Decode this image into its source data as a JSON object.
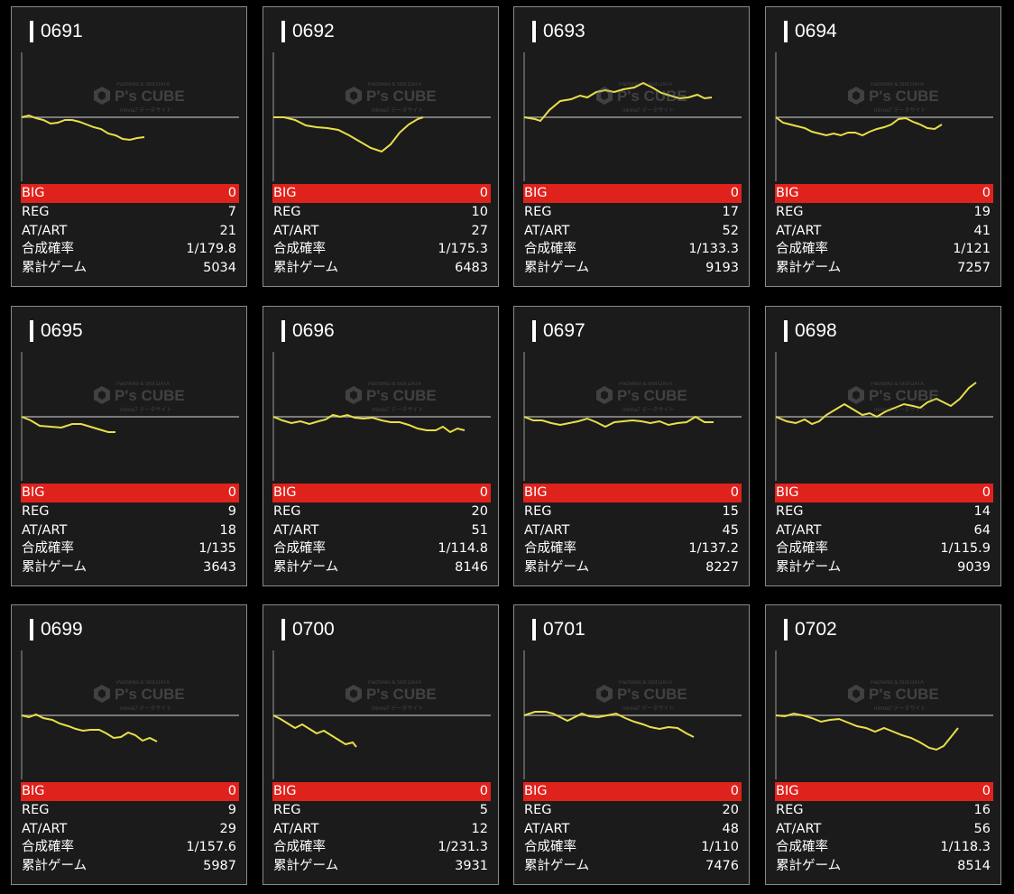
{
  "labels": {
    "big": "BIG",
    "reg": "REG",
    "at": "AT/ART",
    "rate": "合成確率",
    "games": "累計ゲーム"
  },
  "watermark": {
    "brand": "P's CUBE",
    "top": "Pachinko & Slot DATA",
    "sub": "minna7 データサイト"
  },
  "colors": {
    "background": "#000000",
    "card": "#1b1b1b",
    "big_row": "#e0221c",
    "line": "#e8e04a",
    "baseline": "#9a9a9a"
  },
  "machines": [
    {
      "id": "0691",
      "big": "0",
      "reg": "7",
      "at": "21",
      "rate": "1/179.8",
      "games": "5034",
      "trend": [
        [
          0,
          0
        ],
        [
          8,
          -2
        ],
        [
          16,
          1
        ],
        [
          24,
          3
        ],
        [
          32,
          7
        ],
        [
          40,
          6
        ],
        [
          48,
          3
        ],
        [
          56,
          3
        ],
        [
          64,
          5
        ],
        [
          72,
          8
        ],
        [
          80,
          11
        ],
        [
          88,
          13
        ],
        [
          96,
          18
        ],
        [
          104,
          20
        ],
        [
          112,
          24
        ],
        [
          120,
          25
        ],
        [
          128,
          23
        ],
        [
          136,
          22
        ]
      ]
    },
    {
      "id": "0692",
      "big": "0",
      "reg": "10",
      "at": "27",
      "rate": "1/175.3",
      "games": "6483",
      "trend": [
        [
          0,
          0
        ],
        [
          12,
          0
        ],
        [
          24,
          3
        ],
        [
          36,
          9
        ],
        [
          48,
          11
        ],
        [
          60,
          12
        ],
        [
          72,
          14
        ],
        [
          84,
          20
        ],
        [
          96,
          27
        ],
        [
          108,
          34
        ],
        [
          120,
          38
        ],
        [
          130,
          30
        ],
        [
          140,
          17
        ],
        [
          150,
          8
        ],
        [
          160,
          2
        ],
        [
          166,
          0
        ]
      ]
    },
    {
      "id": "0693",
      "big": "0",
      "reg": "17",
      "at": "52",
      "rate": "1/133.3",
      "games": "9193",
      "trend": [
        [
          0,
          0
        ],
        [
          12,
          2
        ],
        [
          18,
          4
        ],
        [
          28,
          -8
        ],
        [
          40,
          -18
        ],
        [
          52,
          -20
        ],
        [
          62,
          -24
        ],
        [
          70,
          -22
        ],
        [
          80,
          -28
        ],
        [
          90,
          -30
        ],
        [
          100,
          -28
        ],
        [
          110,
          -31
        ],
        [
          122,
          -33
        ],
        [
          132,
          -38
        ],
        [
          142,
          -33
        ],
        [
          152,
          -27
        ],
        [
          162,
          -24
        ],
        [
          172,
          -21
        ],
        [
          182,
          -22
        ],
        [
          192,
          -25
        ],
        [
          200,
          -21
        ],
        [
          208,
          -22
        ]
      ]
    },
    {
      "id": "0694",
      "big": "0",
      "reg": "19",
      "at": "41",
      "rate": "1/121",
      "games": "7257",
      "trend": [
        [
          0,
          0
        ],
        [
          8,
          6
        ],
        [
          16,
          8
        ],
        [
          24,
          10
        ],
        [
          32,
          12
        ],
        [
          40,
          16
        ],
        [
          48,
          18
        ],
        [
          56,
          20
        ],
        [
          64,
          18
        ],
        [
          72,
          20
        ],
        [
          80,
          17
        ],
        [
          88,
          17
        ],
        [
          96,
          20
        ],
        [
          104,
          16
        ],
        [
          112,
          13
        ],
        [
          120,
          11
        ],
        [
          128,
          8
        ],
        [
          136,
          2
        ],
        [
          144,
          1
        ],
        [
          152,
          5
        ],
        [
          160,
          8
        ],
        [
          168,
          12
        ],
        [
          176,
          13
        ],
        [
          184,
          8
        ]
      ]
    },
    {
      "id": "0695",
      "big": "0",
      "reg": "9",
      "at": "18",
      "rate": "1/135",
      "games": "3643",
      "trend": [
        [
          0,
          0
        ],
        [
          10,
          4
        ],
        [
          20,
          10
        ],
        [
          32,
          11
        ],
        [
          44,
          12
        ],
        [
          56,
          8
        ],
        [
          66,
          8
        ],
        [
          76,
          11
        ],
        [
          86,
          14
        ],
        [
          96,
          17
        ],
        [
          104,
          17
        ]
      ]
    },
    {
      "id": "0696",
      "big": "0",
      "reg": "20",
      "at": "51",
      "rate": "1/114.8",
      "games": "8146",
      "trend": [
        [
          0,
          0
        ],
        [
          10,
          4
        ],
        [
          20,
          7
        ],
        [
          30,
          5
        ],
        [
          40,
          8
        ],
        [
          50,
          5
        ],
        [
          58,
          3
        ],
        [
          66,
          -2
        ],
        [
          74,
          0
        ],
        [
          82,
          -2
        ],
        [
          90,
          1
        ],
        [
          100,
          2
        ],
        [
          110,
          1
        ],
        [
          120,
          4
        ],
        [
          130,
          6
        ],
        [
          140,
          6
        ],
        [
          150,
          9
        ],
        [
          160,
          13
        ],
        [
          170,
          15
        ],
        [
          180,
          15
        ],
        [
          188,
          11
        ],
        [
          196,
          17
        ],
        [
          204,
          13
        ],
        [
          212,
          15
        ]
      ]
    },
    {
      "id": "0697",
      "big": "0",
      "reg": "15",
      "at": "45",
      "rate": "1/137.2",
      "games": "8227",
      "trend": [
        [
          0,
          0
        ],
        [
          10,
          4
        ],
        [
          20,
          4
        ],
        [
          30,
          7
        ],
        [
          40,
          9
        ],
        [
          50,
          7
        ],
        [
          60,
          5
        ],
        [
          70,
          2
        ],
        [
          80,
          6
        ],
        [
          90,
          11
        ],
        [
          100,
          6
        ],
        [
          110,
          5
        ],
        [
          120,
          4
        ],
        [
          130,
          5
        ],
        [
          140,
          7
        ],
        [
          150,
          5
        ],
        [
          160,
          9
        ],
        [
          170,
          7
        ],
        [
          180,
          6
        ],
        [
          190,
          0
        ],
        [
          200,
          6
        ],
        [
          210,
          6
        ]
      ]
    },
    {
      "id": "0698",
      "big": "0",
      "reg": "14",
      "at": "64",
      "rate": "1/115.9",
      "games": "9039",
      "trend": [
        [
          0,
          0
        ],
        [
          12,
          5
        ],
        [
          22,
          7
        ],
        [
          32,
          3
        ],
        [
          40,
          8
        ],
        [
          48,
          5
        ],
        [
          56,
          -2
        ],
        [
          66,
          -8
        ],
        [
          76,
          -14
        ],
        [
          86,
          -8
        ],
        [
          96,
          -2
        ],
        [
          104,
          -4
        ],
        [
          112,
          0
        ],
        [
          122,
          -6
        ],
        [
          132,
          -10
        ],
        [
          142,
          -14
        ],
        [
          152,
          -12
        ],
        [
          160,
          -10
        ],
        [
          168,
          -16
        ],
        [
          178,
          -20
        ],
        [
          186,
          -16
        ],
        [
          194,
          -12
        ],
        [
          204,
          -20
        ],
        [
          214,
          -32
        ],
        [
          222,
          -38
        ]
      ]
    },
    {
      "id": "0699",
      "big": "0",
      "reg": "9",
      "at": "29",
      "rate": "1/157.6",
      "games": "5987",
      "trend": [
        [
          0,
          0
        ],
        [
          8,
          2
        ],
        [
          16,
          -1
        ],
        [
          24,
          3
        ],
        [
          34,
          5
        ],
        [
          42,
          9
        ],
        [
          52,
          12
        ],
        [
          60,
          15
        ],
        [
          68,
          17
        ],
        [
          76,
          16
        ],
        [
          86,
          16
        ],
        [
          94,
          20
        ],
        [
          102,
          25
        ],
        [
          110,
          24
        ],
        [
          118,
          19
        ],
        [
          126,
          22
        ],
        [
          134,
          28
        ],
        [
          142,
          25
        ],
        [
          150,
          29
        ]
      ]
    },
    {
      "id": "0700",
      "big": "0",
      "reg": "5",
      "at": "12",
      "rate": "1/231.3",
      "games": "3931",
      "trend": [
        [
          0,
          0
        ],
        [
          8,
          4
        ],
        [
          16,
          9
        ],
        [
          24,
          14
        ],
        [
          32,
          10
        ],
        [
          40,
          15
        ],
        [
          48,
          20
        ],
        [
          56,
          17
        ],
        [
          64,
          22
        ],
        [
          72,
          27
        ],
        [
          80,
          32
        ],
        [
          88,
          30
        ],
        [
          92,
          35
        ]
      ]
    },
    {
      "id": "0701",
      "big": "0",
      "reg": "20",
      "at": "48",
      "rate": "1/110",
      "games": "7476",
      "trend": [
        [
          0,
          0
        ],
        [
          12,
          -4
        ],
        [
          24,
          -4
        ],
        [
          32,
          -2
        ],
        [
          40,
          2
        ],
        [
          48,
          6
        ],
        [
          56,
          2
        ],
        [
          64,
          -2
        ],
        [
          72,
          1
        ],
        [
          82,
          2
        ],
        [
          92,
          0
        ],
        [
          102,
          -2
        ],
        [
          112,
          3
        ],
        [
          122,
          7
        ],
        [
          132,
          10
        ],
        [
          140,
          13
        ],
        [
          150,
          15
        ],
        [
          160,
          13
        ],
        [
          170,
          14
        ],
        [
          180,
          20
        ],
        [
          188,
          24
        ]
      ]
    },
    {
      "id": "0702",
      "big": "0",
      "reg": "16",
      "at": "56",
      "rate": "1/118.3",
      "games": "8514",
      "trend": [
        [
          0,
          0
        ],
        [
          10,
          1
        ],
        [
          20,
          -2
        ],
        [
          30,
          0
        ],
        [
          40,
          3
        ],
        [
          50,
          7
        ],
        [
          60,
          5
        ],
        [
          70,
          4
        ],
        [
          80,
          8
        ],
        [
          90,
          12
        ],
        [
          100,
          14
        ],
        [
          110,
          18
        ],
        [
          120,
          14
        ],
        [
          130,
          18
        ],
        [
          140,
          22
        ],
        [
          150,
          25
        ],
        [
          160,
          30
        ],
        [
          170,
          36
        ],
        [
          178,
          38
        ],
        [
          186,
          34
        ],
        [
          194,
          24
        ],
        [
          202,
          14
        ]
      ]
    }
  ]
}
